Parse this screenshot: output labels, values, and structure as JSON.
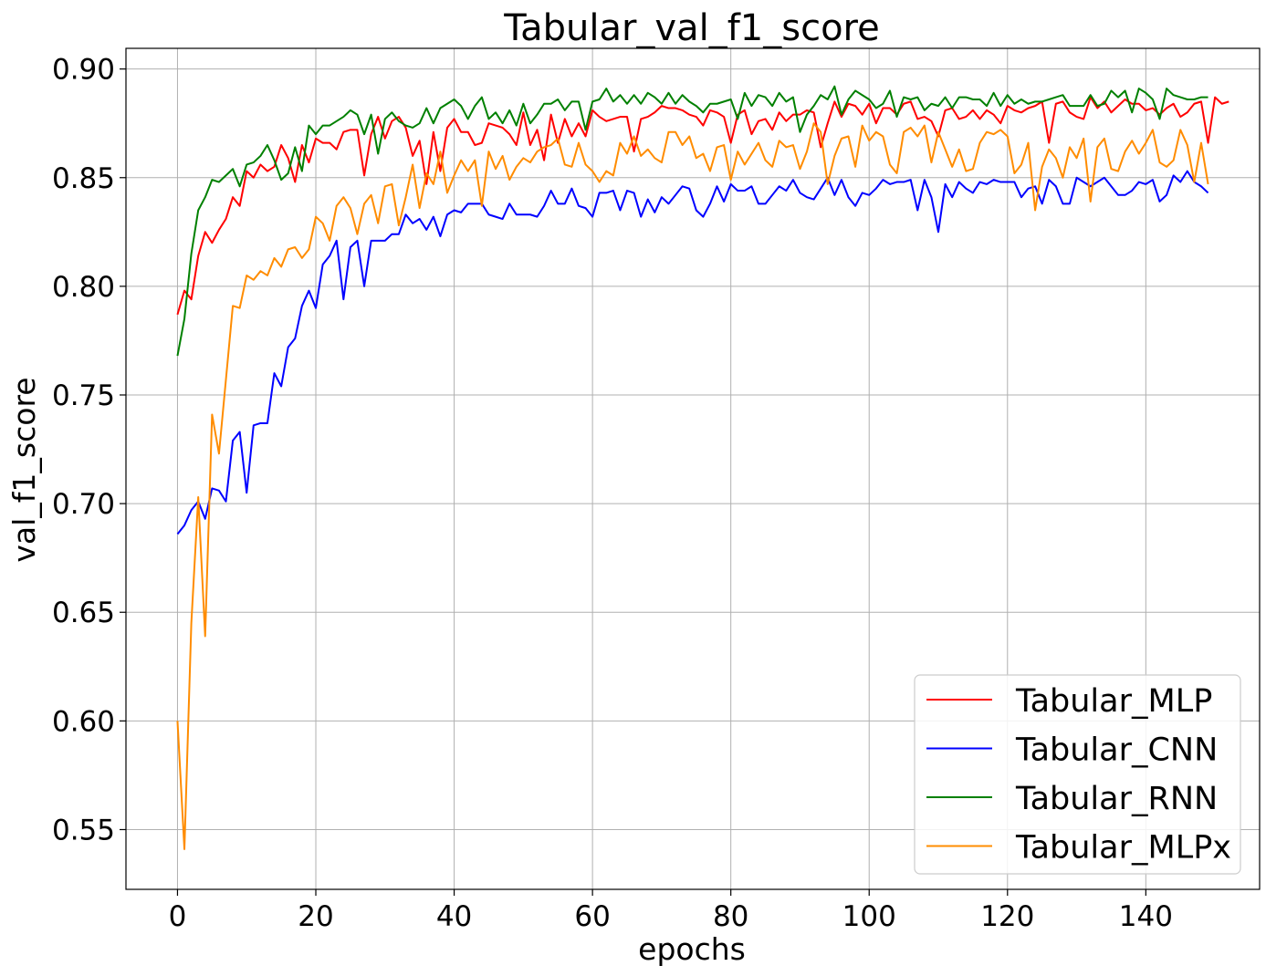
{
  "chart_data": {
    "type": "line",
    "title": "Tabular_val_f1_score",
    "xlabel": "epochs",
    "ylabel": "val_f1_score",
    "xlim": [
      -7.45,
      156.45
    ],
    "ylim": [
      0.5225,
      0.9095
    ],
    "xticks": [
      0,
      20,
      40,
      60,
      80,
      100,
      120,
      140
    ],
    "yticks": [
      0.55,
      0.6,
      0.65,
      0.7,
      0.75,
      0.8,
      0.85,
      0.9
    ],
    "xtick_labels": [
      "0",
      "20",
      "40",
      "60",
      "80",
      "100",
      "120",
      "140"
    ],
    "ytick_labels": [
      "0.55",
      "0.60",
      "0.65",
      "0.70",
      "0.75",
      "0.80",
      "0.85",
      "0.90"
    ],
    "grid": true,
    "legend_position": "lower-right",
    "series": [
      {
        "name": "Tabular_MLP",
        "color": "#ff0000",
        "values": [
          0.787,
          0.798,
          0.794,
          0.814,
          0.825,
          0.82,
          0.826,
          0.831,
          0.841,
          0.837,
          0.853,
          0.85,
          0.856,
          0.853,
          0.855,
          0.865,
          0.859,
          0.848,
          0.865,
          0.857,
          0.868,
          0.866,
          0.866,
          0.863,
          0.871,
          0.872,
          0.872,
          0.851,
          0.87,
          0.878,
          0.868,
          0.876,
          0.878,
          0.873,
          0.86,
          0.867,
          0.847,
          0.871,
          0.853,
          0.873,
          0.877,
          0.871,
          0.871,
          0.865,
          0.866,
          0.875,
          0.874,
          0.873,
          0.87,
          0.865,
          0.88,
          0.865,
          0.872,
          0.858,
          0.879,
          0.866,
          0.877,
          0.869,
          0.875,
          0.869,
          0.881,
          0.878,
          0.876,
          0.877,
          0.878,
          0.878,
          0.862,
          0.877,
          0.878,
          0.88,
          0.883,
          0.882,
          0.882,
          0.881,
          0.879,
          0.878,
          0.874,
          0.881,
          0.88,
          0.878,
          0.866,
          0.879,
          0.881,
          0.87,
          0.876,
          0.877,
          0.872,
          0.88,
          0.876,
          0.879,
          0.879,
          0.881,
          0.88,
          0.864,
          0.875,
          0.885,
          0.878,
          0.884,
          0.883,
          0.879,
          0.884,
          0.875,
          0.882,
          0.882,
          0.879,
          0.884,
          0.885,
          0.877,
          0.878,
          0.876,
          0.869,
          0.881,
          0.882,
          0.877,
          0.878,
          0.881,
          0.877,
          0.881,
          0.879,
          0.875,
          0.883,
          0.881,
          0.88,
          0.882,
          0.883,
          0.885,
          0.866,
          0.884,
          0.885,
          0.88,
          0.878,
          0.877,
          0.887,
          0.882,
          0.885,
          0.88,
          0.883,
          0.886,
          0.884,
          0.884,
          0.881,
          0.882,
          0.879,
          0.882,
          0.884,
          0.878,
          0.88,
          0.884,
          0.885,
          0.866,
          0.887,
          0.884,
          0.885
        ]
      },
      {
        "name": "Tabular_CNN",
        "color": "#0000ff",
        "values": [
          0.686,
          0.69,
          0.697,
          0.701,
          0.693,
          0.707,
          0.706,
          0.701,
          0.729,
          0.733,
          0.705,
          0.736,
          0.737,
          0.737,
          0.76,
          0.754,
          0.772,
          0.776,
          0.791,
          0.798,
          0.79,
          0.81,
          0.814,
          0.821,
          0.794,
          0.818,
          0.821,
          0.8,
          0.821,
          0.821,
          0.821,
          0.824,
          0.824,
          0.833,
          0.829,
          0.831,
          0.826,
          0.832,
          0.823,
          0.833,
          0.835,
          0.834,
          0.838,
          0.838,
          0.838,
          0.833,
          0.832,
          0.831,
          0.838,
          0.833,
          0.833,
          0.833,
          0.832,
          0.837,
          0.844,
          0.838,
          0.838,
          0.845,
          0.837,
          0.836,
          0.832,
          0.843,
          0.843,
          0.844,
          0.835,
          0.844,
          0.843,
          0.832,
          0.84,
          0.834,
          0.841,
          0.838,
          0.842,
          0.846,
          0.845,
          0.835,
          0.832,
          0.838,
          0.846,
          0.839,
          0.847,
          0.844,
          0.844,
          0.846,
          0.838,
          0.838,
          0.842,
          0.846,
          0.844,
          0.849,
          0.843,
          0.841,
          0.84,
          0.845,
          0.85,
          0.842,
          0.849,
          0.841,
          0.837,
          0.843,
          0.842,
          0.845,
          0.849,
          0.847,
          0.848,
          0.848,
          0.849,
          0.835,
          0.849,
          0.841,
          0.825,
          0.847,
          0.841,
          0.848,
          0.845,
          0.843,
          0.848,
          0.847,
          0.849,
          0.848,
          0.848,
          0.848,
          0.841,
          0.845,
          0.846,
          0.838,
          0.849,
          0.846,
          0.838,
          0.838,
          0.85,
          0.848,
          0.846,
          0.848,
          0.85,
          0.846,
          0.842,
          0.842,
          0.844,
          0.848,
          0.847,
          0.849,
          0.839,
          0.842,
          0.851,
          0.848,
          0.853,
          0.848,
          0.846,
          0.843
        ]
      },
      {
        "name": "Tabular_RNN",
        "color": "#008000",
        "values": [
          0.768,
          0.785,
          0.815,
          0.835,
          0.841,
          0.849,
          0.848,
          0.851,
          0.854,
          0.846,
          0.856,
          0.857,
          0.86,
          0.865,
          0.858,
          0.849,
          0.852,
          0.864,
          0.853,
          0.874,
          0.87,
          0.874,
          0.874,
          0.876,
          0.878,
          0.881,
          0.879,
          0.87,
          0.879,
          0.861,
          0.877,
          0.88,
          0.876,
          0.874,
          0.873,
          0.875,
          0.882,
          0.875,
          0.882,
          0.884,
          0.886,
          0.883,
          0.877,
          0.883,
          0.887,
          0.877,
          0.88,
          0.875,
          0.881,
          0.874,
          0.884,
          0.875,
          0.879,
          0.884,
          0.884,
          0.886,
          0.881,
          0.885,
          0.885,
          0.872,
          0.885,
          0.886,
          0.891,
          0.885,
          0.888,
          0.884,
          0.888,
          0.884,
          0.889,
          0.887,
          0.884,
          0.889,
          0.884,
          0.888,
          0.885,
          0.883,
          0.88,
          0.884,
          0.884,
          0.885,
          0.886,
          0.877,
          0.889,
          0.883,
          0.888,
          0.887,
          0.883,
          0.889,
          0.885,
          0.887,
          0.871,
          0.879,
          0.883,
          0.888,
          0.886,
          0.892,
          0.879,
          0.886,
          0.89,
          0.888,
          0.886,
          0.882,
          0.884,
          0.89,
          0.878,
          0.887,
          0.886,
          0.887,
          0.881,
          0.884,
          0.883,
          0.887,
          0.882,
          0.887,
          0.887,
          0.886,
          0.886,
          0.883,
          0.889,
          0.883,
          0.888,
          0.884,
          0.886,
          0.884,
          0.885,
          0.885,
          0.886,
          0.887,
          0.888,
          0.883,
          0.883,
          0.883,
          0.888,
          0.883,
          0.884,
          0.89,
          0.887,
          0.89,
          0.88,
          0.891,
          0.889,
          0.886,
          0.877,
          0.891,
          0.888,
          0.887,
          0.886,
          0.886,
          0.887,
          0.887
        ]
      },
      {
        "name": "Tabular_MLPx",
        "color": "#ff8c00",
        "values": [
          0.6,
          0.541,
          0.645,
          0.703,
          0.639,
          0.741,
          0.723,
          0.757,
          0.791,
          0.79,
          0.805,
          0.803,
          0.807,
          0.805,
          0.813,
          0.809,
          0.817,
          0.818,
          0.813,
          0.817,
          0.832,
          0.829,
          0.821,
          0.837,
          0.841,
          0.836,
          0.824,
          0.838,
          0.842,
          0.829,
          0.846,
          0.847,
          0.828,
          0.841,
          0.856,
          0.836,
          0.852,
          0.847,
          0.862,
          0.843,
          0.851,
          0.858,
          0.853,
          0.858,
          0.837,
          0.862,
          0.854,
          0.86,
          0.849,
          0.855,
          0.859,
          0.857,
          0.862,
          0.864,
          0.865,
          0.868,
          0.856,
          0.855,
          0.866,
          0.856,
          0.853,
          0.848,
          0.853,
          0.851,
          0.866,
          0.861,
          0.869,
          0.86,
          0.863,
          0.859,
          0.857,
          0.871,
          0.871,
          0.865,
          0.869,
          0.859,
          0.861,
          0.853,
          0.864,
          0.865,
          0.849,
          0.862,
          0.856,
          0.861,
          0.866,
          0.858,
          0.855,
          0.867,
          0.864,
          0.865,
          0.854,
          0.862,
          0.875,
          0.871,
          0.847,
          0.86,
          0.868,
          0.869,
          0.855,
          0.874,
          0.867,
          0.871,
          0.869,
          0.856,
          0.852,
          0.871,
          0.873,
          0.869,
          0.874,
          0.857,
          0.871,
          0.863,
          0.855,
          0.863,
          0.853,
          0.854,
          0.866,
          0.871,
          0.87,
          0.872,
          0.869,
          0.852,
          0.856,
          0.866,
          0.835,
          0.855,
          0.863,
          0.859,
          0.85,
          0.864,
          0.859,
          0.868,
          0.839,
          0.864,
          0.868,
          0.854,
          0.853,
          0.862,
          0.867,
          0.861,
          0.866,
          0.872,
          0.857,
          0.855,
          0.858,
          0.872,
          0.865,
          0.848,
          0.866,
          0.847
        ]
      }
    ]
  }
}
